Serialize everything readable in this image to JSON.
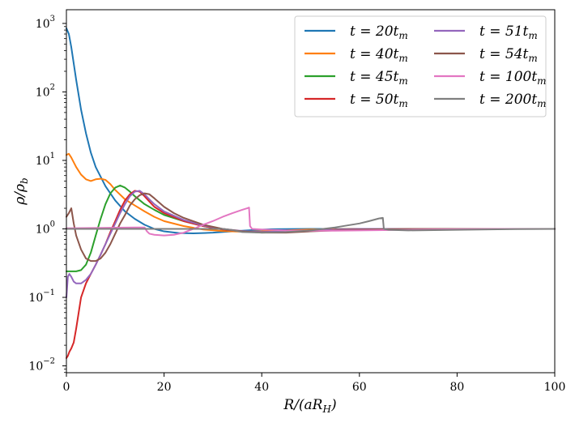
{
  "chart_data": {
    "type": "line",
    "title": "",
    "xlabel": "R/(aR_H)",
    "ylabel": "ρ/ρ_b",
    "xlim": [
      0,
      100
    ],
    "ylim_log10": [
      -2.1,
      3.2
    ],
    "yscale": "log",
    "grid": false,
    "legend_position": "top-right",
    "legend_columns": 2,
    "x_ticks": [
      0,
      20,
      40,
      60,
      80,
      100
    ],
    "x_tick_labels": [
      "0",
      "20",
      "40",
      "60",
      "80",
      "100"
    ],
    "y_ticks_log10": [
      -2,
      -1,
      0,
      1,
      2,
      3
    ],
    "y_tick_labels": [
      {
        "base": "10",
        "exp": "−2"
      },
      {
        "base": "10",
        "exp": "−1"
      },
      {
        "base": "10",
        "exp": "0"
      },
      {
        "base": "10",
        "exp": "1"
      },
      {
        "base": "10",
        "exp": "2"
      },
      {
        "base": "10",
        "exp": "3"
      }
    ],
    "series": [
      {
        "name": "t = 20tm",
        "label_main": "t = 20t",
        "label_sub": "m",
        "color": "#1f77b4",
        "x": [
          0,
          0.5,
          1,
          2,
          3,
          4,
          5,
          6,
          8,
          10,
          12,
          14,
          16,
          18,
          20,
          23,
          26,
          30,
          34,
          38,
          42,
          50,
          60,
          70,
          80,
          90,
          100
        ],
        "y": [
          850,
          700,
          450,
          150,
          55,
          25,
          13,
          8,
          4.2,
          2.6,
          1.8,
          1.4,
          1.15,
          1.0,
          0.92,
          0.87,
          0.86,
          0.88,
          0.92,
          0.96,
          0.99,
          1.0,
          1.0,
          1.0,
          1.0,
          1.0,
          1.0
        ]
      },
      {
        "name": "t = 40tm",
        "label_main": "t = 40t",
        "label_sub": "m",
        "color": "#ff7f0e",
        "x": [
          0,
          0.5,
          1,
          2,
          3,
          4,
          5,
          6,
          7,
          8,
          9,
          10,
          12,
          14,
          16,
          18,
          20,
          24,
          28,
          32,
          36,
          40,
          45,
          50,
          60,
          70,
          80,
          90,
          100
        ],
        "y": [
          12,
          12.5,
          11,
          8,
          6.2,
          5.3,
          5.0,
          5.3,
          5.4,
          5.2,
          4.5,
          3.7,
          2.7,
          2.2,
          1.8,
          1.5,
          1.3,
          1.1,
          0.98,
          0.93,
          0.91,
          0.92,
          0.95,
          0.98,
          1.0,
          1.0,
          1.0,
          1.0,
          1.0
        ]
      },
      {
        "name": "t = 45tm",
        "label_main": "t = 45t",
        "label_sub": "m",
        "color": "#2ca02c",
        "x": [
          0,
          0.5,
          1,
          2,
          3,
          4,
          5,
          6,
          7,
          8,
          9,
          10,
          11,
          12,
          13,
          14,
          16,
          18,
          20,
          24,
          28,
          32,
          36,
          40,
          45,
          50,
          60,
          70,
          80,
          90,
          100
        ],
        "y": [
          0.24,
          0.24,
          0.24,
          0.24,
          0.25,
          0.3,
          0.45,
          0.8,
          1.4,
          2.3,
          3.3,
          4.0,
          4.3,
          4.0,
          3.5,
          3.0,
          2.3,
          1.9,
          1.6,
          1.3,
          1.1,
          0.98,
          0.92,
          0.9,
          0.92,
          0.95,
          1.0,
          1.0,
          1.0,
          1.0,
          1.0
        ]
      },
      {
        "name": "t = 50tm",
        "label_main": "t = 50t",
        "label_sub": "m",
        "color": "#d62728",
        "x": [
          0,
          0.3,
          0.6,
          1,
          1.5,
          2,
          3,
          4,
          5,
          6,
          7,
          8,
          9,
          10,
          11,
          12,
          13,
          14,
          15,
          16,
          17,
          18,
          20,
          24,
          28,
          32,
          36,
          40,
          45,
          50,
          60,
          70,
          80,
          90,
          100
        ],
        "y": [
          0.013,
          0.014,
          0.016,
          0.018,
          0.022,
          0.035,
          0.1,
          0.16,
          0.22,
          0.3,
          0.42,
          0.6,
          0.9,
          1.3,
          1.9,
          2.6,
          3.2,
          3.6,
          3.5,
          3.0,
          2.5,
          2.1,
          1.7,
          1.3,
          1.1,
          0.98,
          0.92,
          0.9,
          0.92,
          0.95,
          1.0,
          1.0,
          1.0,
          1.0,
          1.0
        ]
      },
      {
        "name": "t = 51tm",
        "label_main": "t = 51t",
        "label_sub": "m",
        "color": "#9467bd",
        "x": [
          0,
          0.3,
          0.6,
          1,
          1.5,
          2,
          3,
          4,
          5,
          6,
          7,
          8,
          9,
          10,
          11,
          12,
          13,
          14,
          15,
          16,
          17,
          18,
          20,
          24,
          28,
          32,
          36,
          40,
          45,
          50,
          60,
          70,
          80,
          90,
          100
        ],
        "y": [
          0.1,
          0.2,
          0.22,
          0.2,
          0.17,
          0.16,
          0.16,
          0.18,
          0.22,
          0.3,
          0.42,
          0.6,
          0.85,
          1.2,
          1.7,
          2.3,
          3.0,
          3.5,
          3.6,
          3.2,
          2.7,
          2.3,
          1.8,
          1.35,
          1.12,
          1.0,
          0.93,
          0.9,
          0.92,
          0.95,
          1.0,
          1.0,
          1.0,
          1.0,
          1.0
        ]
      },
      {
        "name": "t = 54tm",
        "label_main": "t = 54t",
        "label_sub": "m",
        "color": "#8c564b",
        "x": [
          0,
          0.5,
          1,
          1.5,
          2,
          3,
          4,
          5,
          6,
          7,
          8,
          9,
          10,
          11,
          12,
          13,
          14,
          15,
          16,
          17,
          18,
          20,
          22,
          24,
          28,
          32,
          36,
          40,
          45,
          50,
          60,
          70,
          80,
          90,
          100
        ],
        "y": [
          1.5,
          1.7,
          2.0,
          1.2,
          0.8,
          0.5,
          0.37,
          0.34,
          0.34,
          0.37,
          0.45,
          0.6,
          0.85,
          1.2,
          1.6,
          2.2,
          2.7,
          3.1,
          3.3,
          3.2,
          2.8,
          2.1,
          1.7,
          1.45,
          1.15,
          1.0,
          0.92,
          0.88,
          0.88,
          0.92,
          0.98,
          1.0,
          1.0,
          1.0,
          1.0
        ]
      },
      {
        "name": "t = 100tm",
        "label_main": "t = 100t",
        "label_sub": "m",
        "color": "#e377c2",
        "x": [
          0,
          5,
          10,
          14,
          16,
          16.5,
          17,
          18,
          20,
          22,
          24,
          26,
          28,
          30,
          32,
          34,
          36,
          37,
          37.4,
          37.6,
          38,
          40,
          45,
          50,
          55,
          60,
          65,
          70,
          80,
          90,
          100
        ],
        "y": [
          1.02,
          1.03,
          1.04,
          1.05,
          1.05,
          0.92,
          0.85,
          0.82,
          0.8,
          0.82,
          0.88,
          1.0,
          1.15,
          1.3,
          1.5,
          1.7,
          1.9,
          2.0,
          2.05,
          1.1,
          1.0,
          0.98,
          0.95,
          0.94,
          0.94,
          0.95,
          0.96,
          0.97,
          0.99,
          1.0,
          1.0
        ]
      },
      {
        "name": "t = 200tm",
        "label_main": "t = 200t",
        "label_sub": "m",
        "color": "#7f7f7f",
        "x": [
          0,
          10,
          20,
          28,
          32,
          34,
          36,
          40,
          45,
          50,
          55,
          60,
          62,
          64,
          64.8,
          65,
          66,
          70,
          80,
          90,
          100
        ],
        "y": [
          1.0,
          1.0,
          1.0,
          1.0,
          1.0,
          0.96,
          0.9,
          0.88,
          0.9,
          0.95,
          1.05,
          1.2,
          1.3,
          1.42,
          1.45,
          1.0,
          0.97,
          0.95,
          0.97,
          0.99,
          1.0
        ]
      }
    ]
  }
}
